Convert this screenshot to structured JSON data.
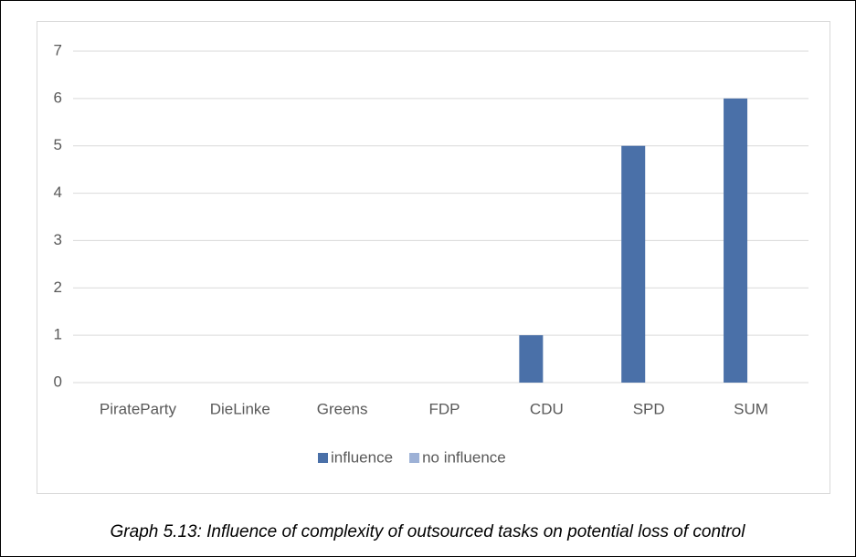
{
  "chart_data": {
    "type": "bar",
    "categories": [
      "PirateParty",
      "DieLinke",
      "Greens",
      "FDP",
      "CDU",
      "SPD",
      "SUM"
    ],
    "series": [
      {
        "name": "influence",
        "color": "#4a70a8",
        "values": [
          0,
          0,
          0,
          0,
          1,
          5,
          6
        ]
      },
      {
        "name": "no influence",
        "color": "#9db1d6",
        "values": [
          0,
          0,
          0,
          0,
          0,
          0,
          0
        ]
      }
    ],
    "ylim": [
      0,
      7
    ],
    "yticks": [
      0,
      1,
      2,
      3,
      4,
      5,
      6,
      7
    ],
    "grid": true,
    "legend": "bottom",
    "caption": "Graph 5.13: Influence of complexity of outsourced tasks on potential loss of control"
  }
}
